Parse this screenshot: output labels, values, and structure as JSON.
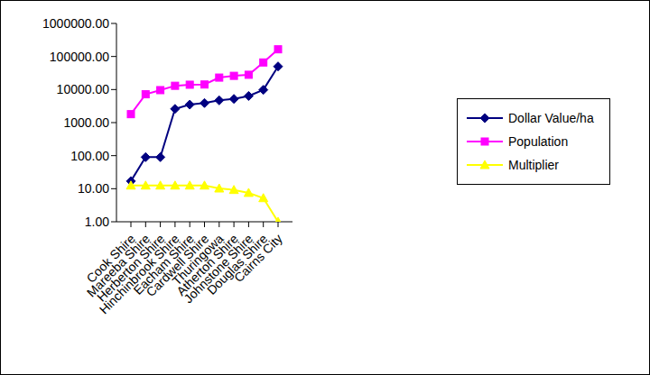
{
  "chart_data": {
    "type": "line",
    "categories": [
      "Cook Shire",
      "Mareeba Shire",
      "Herberton Shire",
      "Hinchinbrook Shire",
      "Eacham Shire",
      "Cardwell Shire",
      "Thuringowa",
      "Atherton Shire",
      "Johnstone Shire",
      "Douglas Shire",
      "Cairns City"
    ],
    "series": [
      {
        "name": "Dollar Value/ha",
        "color": "#000080",
        "marker": "diamond",
        "values": [
          17,
          90,
          90,
          2600,
          3500,
          3900,
          4700,
          5200,
          6400,
          9800,
          50000
        ]
      },
      {
        "name": "Population",
        "color": "#FF00FF",
        "marker": "square",
        "values": [
          1800,
          7200,
          9600,
          13000,
          14000,
          14200,
          23000,
          26000,
          28000,
          66000,
          165000
        ]
      },
      {
        "name": "Multiplier",
        "color": "#FFFF00",
        "marker": "triangle",
        "values": [
          12.5,
          12.5,
          12.5,
          12.5,
          12.5,
          12.5,
          10.2,
          9.2,
          7.5,
          5.2,
          1.0
        ]
      }
    ],
    "log": "y",
    "ylim": [
      1,
      1000000
    ],
    "yticks": [
      {
        "value": 1,
        "label": "1.00"
      },
      {
        "value": 10,
        "label": "10.00"
      },
      {
        "value": 100,
        "label": "100.00"
      },
      {
        "value": 1000,
        "label": "1000.00"
      },
      {
        "value": 10000,
        "label": "10000.00"
      },
      {
        "value": 100000,
        "label": "100000.00"
      },
      {
        "value": 1000000,
        "label": "1000000.00"
      }
    ],
    "grid": false,
    "legend": "right"
  }
}
